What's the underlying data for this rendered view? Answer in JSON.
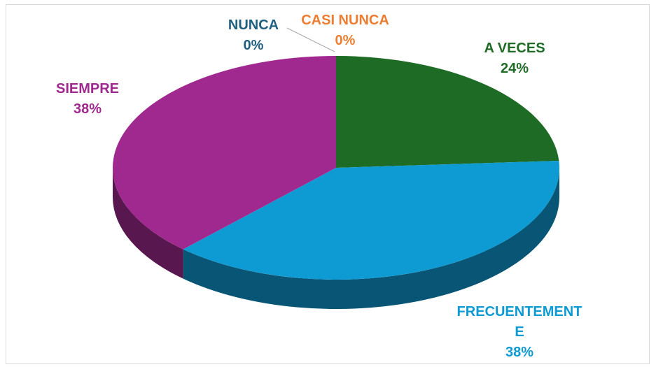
{
  "chart_data": {
    "type": "pie",
    "categories": [
      "NUNCA",
      "CASI NUNCA",
      "A VECES",
      "FRECUENTEMENTE",
      "SIEMPRE"
    ],
    "values": [
      0,
      0,
      24,
      38,
      38
    ],
    "value_labels": [
      "0%",
      "0%",
      "24%",
      "38%",
      "38%"
    ],
    "colors": [
      "#1f5f80",
      "#ed7d31",
      "#1e6b25",
      "#0e9bd4",
      "#a0298f"
    ]
  }
}
